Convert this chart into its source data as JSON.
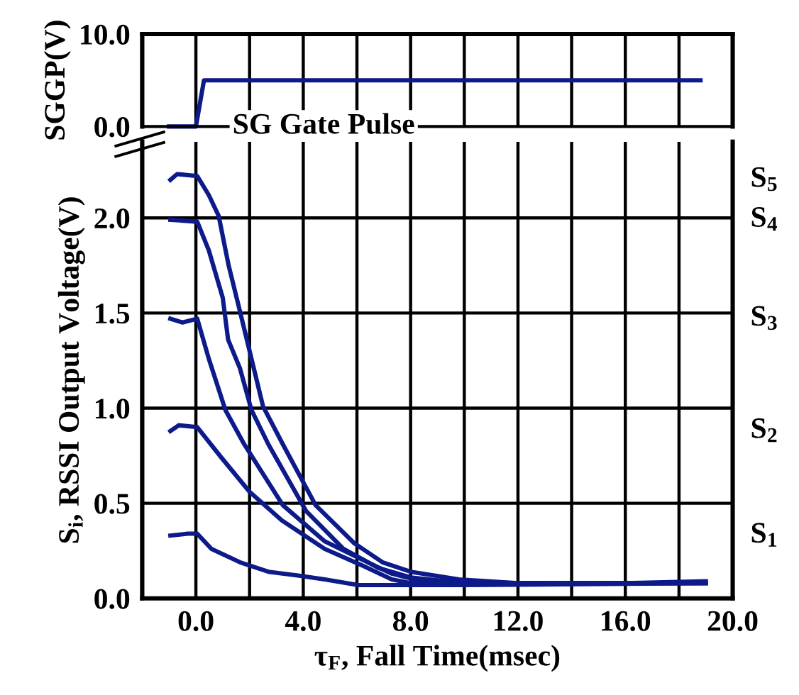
{
  "chart_data": [
    {
      "type": "line",
      "ylabel": "SGGP(V)",
      "xlim": [
        -2,
        20
      ],
      "ylim": [
        0,
        10
      ],
      "xticks": [
        {
          "value": 0,
          "label": null
        },
        {
          "value": 2,
          "label": null
        },
        {
          "value": 4,
          "label": null
        },
        {
          "value": 6,
          "label": null
        },
        {
          "value": 8,
          "label": null
        },
        {
          "value": 10,
          "label": null
        },
        {
          "value": 12,
          "label": null
        },
        {
          "value": 14,
          "label": null
        },
        {
          "value": 16,
          "label": null
        },
        {
          "value": 18,
          "label": null
        }
      ],
      "yticks": [
        {
          "value": 0,
          "label": "0.0"
        },
        {
          "value": 10,
          "label": "10.0"
        }
      ],
      "tick_labels": "y",
      "grid": "x",
      "legend": false,
      "series": [
        {
          "name": "SG Gate Pulse",
          "color": "#0d1a8a",
          "x": [
            -1.0,
            0.0,
            0.3,
            4.0,
            8.0,
            12.0,
            16.0,
            18.8
          ],
          "values": [
            0.0,
            0.0,
            5.0,
            5.0,
            5.0,
            5.0,
            5.0,
            5.0
          ]
        }
      ]
    },
    {
      "type": "line",
      "xlabel": "τ$_{F}$, Fall Time(msec)",
      "ylabel": "S$_{i}$, RSSI Output Voltage(V)",
      "xlim": [
        -2,
        20
      ],
      "ylim": [
        0,
        2.4
      ],
      "xticks": [
        {
          "value": 0,
          "label": "0.0"
        },
        {
          "value": 2,
          "label": null
        },
        {
          "value": 4,
          "label": "4.0"
        },
        {
          "value": 6,
          "label": null
        },
        {
          "value": 8,
          "label": "8.0"
        },
        {
          "value": 10,
          "label": null
        },
        {
          "value": 12,
          "label": "12.0"
        },
        {
          "value": 14,
          "label": null
        },
        {
          "value": 16,
          "label": "16.0"
        },
        {
          "value": 18,
          "label": null
        },
        {
          "value": 20,
          "label": "20.0"
        }
      ],
      "yticks": [
        {
          "value": 0,
          "label": "0.0"
        },
        {
          "value": 0.5,
          "label": "0.5"
        },
        {
          "value": 1.0,
          "label": "1.0"
        },
        {
          "value": 1.5,
          "label": "1.5"
        },
        {
          "value": 2.0,
          "label": "2.0"
        }
      ],
      "grid": true,
      "legend": false,
      "series": [
        {
          "name": "S$_{5}$",
          "color": "#0d1a8a",
          "x": [
            -0.95,
            -0.7,
            0.05,
            0.48,
            0.85,
            1.22,
            1.64,
            2.07,
            2.5,
            3.24,
            4.46,
            5.9,
            6.95,
            8.0,
            9.8,
            12.0,
            16.0,
            19.0
          ],
          "values": [
            2.2,
            2.23,
            2.22,
            2.12,
            2.01,
            1.75,
            1.51,
            1.26,
            1.01,
            0.81,
            0.49,
            0.29,
            0.19,
            0.14,
            0.1,
            0.08,
            0.08,
            0.09
          ]
        },
        {
          "name": "S$_{4}$",
          "color": "#0d1a8a",
          "x": [
            -0.95,
            0.05,
            0.48,
            1.0,
            1.2,
            1.64,
            2.07,
            2.7,
            4.1,
            5.5,
            6.8,
            8.0,
            10.0,
            14.0,
            19.0
          ],
          "values": [
            1.99,
            1.98,
            1.83,
            1.58,
            1.36,
            1.21,
            0.99,
            0.81,
            0.46,
            0.26,
            0.16,
            0.11,
            0.08,
            0.08,
            0.08
          ]
        },
        {
          "name": "S$_{3}$",
          "color": "#0d1a8a",
          "x": [
            -0.95,
            -0.5,
            0.05,
            0.48,
            1.1,
            1.8,
            3.24,
            4.8,
            6.25,
            7.3,
            8.4,
            12.0,
            19.0
          ],
          "values": [
            1.47,
            1.45,
            1.47,
            1.26,
            0.99,
            0.81,
            0.49,
            0.3,
            0.2,
            0.13,
            0.09,
            0.08,
            0.08
          ]
        },
        {
          "name": "S$_{2}$",
          "color": "#0d1a8a",
          "x": [
            -0.95,
            -0.64,
            0.05,
            0.95,
            2.0,
            3.2,
            4.8,
            6.25,
            7.3,
            8.0,
            12.0,
            19.0
          ],
          "values": [
            0.88,
            0.91,
            0.9,
            0.74,
            0.56,
            0.41,
            0.26,
            0.17,
            0.1,
            0.08,
            0.08,
            0.08
          ]
        },
        {
          "name": "S$_{1}$",
          "color": "#0d1a8a",
          "x": [
            -0.95,
            -0.3,
            0.05,
            0.58,
            1.64,
            2.7,
            3.8,
            4.8,
            6.05,
            10.0,
            19.0
          ],
          "values": [
            0.33,
            0.34,
            0.34,
            0.26,
            0.19,
            0.14,
            0.12,
            0.1,
            0.07,
            0.07,
            0.08
          ]
        }
      ]
    }
  ]
}
